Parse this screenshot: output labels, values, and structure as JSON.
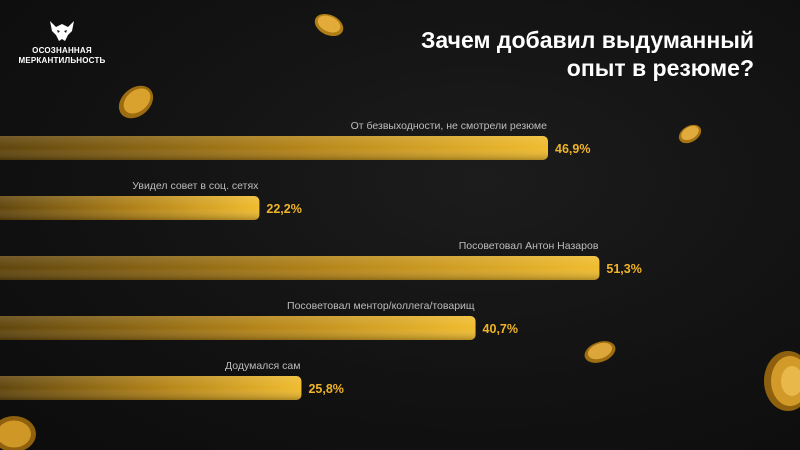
{
  "brand": {
    "line1": "ОСОЗНАННАЯ",
    "line2": "МЕРКАНТИЛЬНОСТЬ",
    "logo_icon": "wolf-head-icon"
  },
  "colors": {
    "background": "#141414",
    "bar_gold": "#d9a21f",
    "value_text": "#f0b428",
    "label_text": "#bdbdbd",
    "title_text": "#ffffff"
  },
  "chart_data": {
    "type": "bar",
    "orientation": "horizontal",
    "title": "Зачем добавил выдуманный опыт в резюме?",
    "categories": [
      "От безвыходности, не смотрели резюме",
      "Увидел совет в соц. сетях",
      "Посоветовал Антон Назаров",
      "Посоветовал ментор/коллега/товарищ",
      "Додумался сам"
    ],
    "values": [
      46.9,
      22.2,
      51.3,
      40.7,
      25.8
    ],
    "value_labels": [
      "46,9%",
      "22,2%",
      "51,3%",
      "40,7%",
      "25,8%"
    ],
    "unit": "%",
    "xlim": [
      0,
      60
    ],
    "grid": false,
    "legend": "none"
  }
}
